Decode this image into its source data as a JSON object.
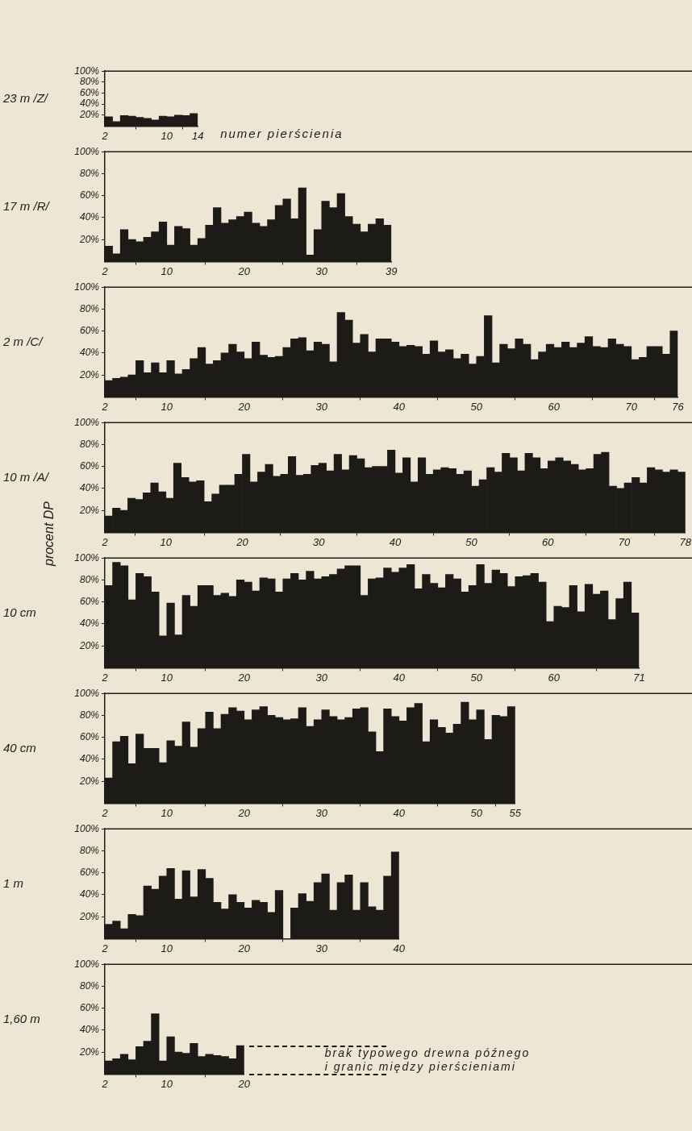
{
  "chart_data": [
    {
      "type": "histogram",
      "title": "23 m /Z/",
      "xlabel": "numer pierścienia",
      "color": "#1d1b18",
      "bins": [
        2,
        3,
        4,
        5,
        6,
        7,
        8,
        9,
        10,
        11,
        12,
        13,
        14
      ],
      "values": [
        17,
        8,
        19,
        18,
        16,
        14,
        11,
        18,
        17,
        20,
        19,
        23
      ],
      "xlim": [
        2,
        14
      ],
      "xticks": [
        2,
        10,
        14
      ],
      "ylim": [
        0,
        100
      ],
      "yticks": [
        {
          "value": 20,
          "label": "20%"
        },
        {
          "value": 40,
          "label": "40%"
        },
        {
          "value": 60,
          "label": "60%"
        },
        {
          "value": 80,
          "label": "80%"
        },
        {
          "value": 100,
          "label": "100%"
        }
      ]
    },
    {
      "type": "histogram",
      "title": "17 m /R/",
      "color": "#1d1b18",
      "bins": [
        2,
        3,
        4,
        5,
        6,
        7,
        8,
        9,
        10,
        11,
        12,
        13,
        14,
        15,
        16,
        17,
        18,
        19,
        20,
        21,
        22,
        23,
        24,
        25,
        26,
        27,
        28,
        29,
        30,
        31,
        32,
        33,
        34,
        35,
        36,
        37,
        38,
        39
      ],
      "values": [
        14,
        7,
        29,
        20,
        18,
        22,
        27,
        36,
        15,
        32,
        30,
        15,
        21,
        33,
        49,
        35,
        38,
        41,
        45,
        35,
        32,
        38,
        51,
        57,
        39,
        67,
        6,
        29,
        55,
        49,
        62,
        41,
        34,
        27,
        34,
        39,
        33
      ],
      "xlim": [
        2,
        39
      ],
      "xticks": [
        2,
        10,
        20,
        30,
        39
      ],
      "ylim": [
        0,
        100
      ],
      "yticks": [
        {
          "value": 20,
          "label": "20%"
        },
        {
          "value": 40,
          "label": "40%"
        },
        {
          "value": 60,
          "label": "60%"
        },
        {
          "value": 80,
          "label": "80%"
        },
        {
          "value": 100,
          "label": "100%"
        }
      ]
    },
    {
      "type": "histogram",
      "title": "2 m /C/",
      "color": "#1d1b18",
      "bins": [
        2,
        3,
        4,
        5,
        6,
        7,
        8,
        9,
        10,
        11,
        12,
        13,
        14,
        15,
        16,
        17,
        18,
        19,
        20,
        21,
        22,
        23,
        24,
        25,
        26,
        27,
        28,
        29,
        30,
        31,
        32,
        33,
        34,
        35,
        36,
        37,
        38,
        39,
        40,
        41,
        42,
        43,
        44,
        45,
        46,
        47,
        48,
        49,
        50,
        51,
        52,
        53,
        54,
        55,
        56,
        57,
        58,
        59,
        60,
        61,
        62,
        63,
        64,
        65,
        66,
        67,
        68,
        69,
        70,
        71,
        72,
        73,
        74,
        75,
        76
      ],
      "values": [
        15,
        17,
        18,
        20,
        33,
        22,
        31,
        22,
        33,
        21,
        25,
        35,
        45,
        30,
        33,
        40,
        48,
        41,
        35,
        50,
        38,
        36,
        37,
        45,
        53,
        54,
        42,
        50,
        48,
        32,
        77,
        70,
        49,
        57,
        41,
        53,
        53,
        50,
        46,
        47,
        46,
        39,
        51,
        41,
        43,
        35,
        39,
        30,
        37,
        74,
        31,
        48,
        44,
        53,
        48,
        34,
        41,
        48,
        45,
        50,
        45,
        49,
        55,
        46,
        45,
        53,
        48,
        46,
        34,
        36,
        46,
        46,
        39,
        60
      ],
      "xlim": [
        2,
        76
      ],
      "xticks": [
        2,
        10,
        20,
        30,
        40,
        50,
        60,
        70,
        76
      ],
      "ylim": [
        0,
        100
      ],
      "yticks": [
        {
          "value": 20,
          "label": "20%"
        },
        {
          "value": 40,
          "label": "40%"
        },
        {
          "value": 60,
          "label": "60%"
        },
        {
          "value": 80,
          "label": "80%"
        },
        {
          "value": 100,
          "label": "100%"
        }
      ]
    },
    {
      "type": "histogram",
      "title": "10 m /A/",
      "ylabel": "procent DP",
      "color": "#1d1b18",
      "bins": [
        2,
        3,
        4,
        5,
        6,
        7,
        8,
        9,
        10,
        11,
        12,
        13,
        14,
        15,
        16,
        17,
        18,
        19,
        20,
        21,
        22,
        23,
        24,
        25,
        26,
        27,
        28,
        29,
        30,
        31,
        32,
        33,
        34,
        35,
        36,
        37,
        38,
        39,
        40,
        41,
        42,
        43,
        44,
        45,
        46,
        47,
        48,
        49,
        50,
        51,
        52,
        53,
        54,
        55,
        56,
        57,
        58,
        59,
        60,
        61,
        62,
        63,
        64,
        65,
        66,
        67,
        68,
        69,
        70,
        71,
        72,
        73,
        74,
        75,
        76,
        77,
        78
      ],
      "values": [
        15,
        22,
        20,
        31,
        30,
        36,
        45,
        37,
        31,
        63,
        50,
        46,
        47,
        28,
        35,
        43,
        43,
        53,
        71,
        46,
        55,
        62,
        51,
        53,
        69,
        52,
        53,
        61,
        63,
        56,
        71,
        57,
        70,
        67,
        59,
        60,
        60,
        75,
        54,
        68,
        46,
        68,
        53,
        57,
        59,
        58,
        53,
        56,
        42,
        48,
        59,
        55,
        72,
        68,
        56,
        72,
        68,
        58,
        65,
        68,
        65,
        62,
        57,
        58,
        71,
        73,
        42,
        40,
        45,
        50,
        45,
        59,
        57,
        55,
        57,
        55
      ],
      "xlim": [
        2,
        78
      ],
      "xticks": [
        2,
        10,
        20,
        30,
        40,
        50,
        60,
        70,
        78
      ],
      "ylim": [
        0,
        100
      ],
      "yticks": [
        {
          "value": 20,
          "label": "20%"
        },
        {
          "value": 40,
          "label": "40%"
        },
        {
          "value": 60,
          "label": "60%"
        },
        {
          "value": 80,
          "label": "80%"
        },
        {
          "value": 100,
          "label": "100%"
        }
      ]
    },
    {
      "type": "histogram",
      "title": "10 cm",
      "color": "#1d1b18",
      "bins": [
        2,
        3,
        4,
        5,
        6,
        7,
        8,
        9,
        10,
        11,
        12,
        13,
        14,
        15,
        16,
        17,
        18,
        19,
        20,
        21,
        22,
        23,
        24,
        25,
        26,
        27,
        28,
        29,
        30,
        31,
        32,
        33,
        34,
        35,
        36,
        37,
        38,
        39,
        40,
        41,
        42,
        43,
        44,
        45,
        46,
        47,
        48,
        49,
        50,
        51,
        52,
        53,
        54,
        55,
        56,
        57,
        58,
        59,
        60,
        61,
        62,
        63,
        64,
        65,
        66,
        67,
        68,
        69,
        70,
        71
      ],
      "values": [
        75,
        96,
        93,
        62,
        86,
        83,
        69,
        29,
        59,
        30,
        66,
        56,
        75,
        75,
        66,
        68,
        65,
        80,
        78,
        70,
        82,
        81,
        69,
        81,
        86,
        80,
        88,
        81,
        83,
        85,
        90,
        93,
        93,
        66,
        81,
        82,
        91,
        87,
        91,
        94,
        72,
        85,
        77,
        73,
        85,
        81,
        69,
        75,
        94,
        77,
        89,
        86,
        74,
        83,
        84,
        86,
        78,
        42,
        56,
        55,
        75,
        51,
        76,
        67,
        70,
        44,
        63,
        78,
        50
      ],
      "xlim": [
        2,
        71
      ],
      "xticks": [
        2,
        10,
        20,
        30,
        40,
        50,
        60,
        71
      ],
      "ylim": [
        0,
        100
      ],
      "yticks": [
        {
          "value": 20,
          "label": "20%"
        },
        {
          "value": 40,
          "label": "40%"
        },
        {
          "value": 60,
          "label": "60%"
        },
        {
          "value": 80,
          "label": "80%"
        },
        {
          "value": 100,
          "label": "100%"
        }
      ]
    },
    {
      "type": "histogram",
      "title": "40 cm",
      "color": "#1d1b18",
      "bins": [
        2,
        3,
        4,
        5,
        6,
        7,
        8,
        9,
        10,
        11,
        12,
        13,
        14,
        15,
        16,
        17,
        18,
        19,
        20,
        21,
        22,
        23,
        24,
        25,
        26,
        27,
        28,
        29,
        30,
        31,
        32,
        33,
        34,
        35,
        36,
        37,
        38,
        39,
        40,
        41,
        42,
        43,
        44,
        45,
        46,
        47,
        48,
        49,
        50,
        51,
        52,
        53,
        54,
        55
      ],
      "values": [
        23,
        56,
        61,
        36,
        63,
        50,
        50,
        37,
        57,
        52,
        74,
        51,
        68,
        83,
        68,
        81,
        87,
        84,
        76,
        85,
        88,
        80,
        78,
        76,
        77,
        87,
        70,
        76,
        85,
        79,
        76,
        78,
        86,
        87,
        65,
        47,
        86,
        79,
        75,
        87,
        91,
        56,
        76,
        69,
        64,
        72,
        92,
        76,
        85,
        58,
        80,
        79,
        88
      ],
      "xlim": [
        2,
        55
      ],
      "xticks": [
        2,
        10,
        20,
        30,
        40,
        50,
        55
      ],
      "ylim": [
        0,
        100
      ],
      "yticks": [
        {
          "value": 20,
          "label": "20%"
        },
        {
          "value": 40,
          "label": "40%"
        },
        {
          "value": 60,
          "label": "60%"
        },
        {
          "value": 80,
          "label": "80%"
        },
        {
          "value": 100,
          "label": "100%"
        }
      ]
    },
    {
      "type": "histogram",
      "title": "1 m",
      "color": "#1d1b18",
      "bins": [
        2,
        3,
        4,
        5,
        6,
        7,
        8,
        9,
        10,
        11,
        12,
        13,
        14,
        15,
        16,
        17,
        18,
        19,
        20,
        21,
        22,
        23,
        24,
        25,
        26,
        27,
        28,
        29,
        30,
        31,
        32,
        33,
        34,
        35,
        36,
        37,
        38,
        39,
        40
      ],
      "values": [
        13,
        16,
        9,
        22,
        21,
        48,
        45,
        57,
        64,
        36,
        62,
        38,
        63,
        55,
        33,
        27,
        40,
        33,
        28,
        35,
        33,
        24,
        44,
        0,
        28,
        41,
        34,
        51,
        59,
        26,
        51,
        58,
        26,
        51,
        29,
        26,
        57,
        79
      ],
      "xlim": [
        2,
        40
      ],
      "xticks": [
        2,
        10,
        20,
        30,
        40
      ],
      "ylim": [
        0,
        100
      ],
      "yticks": [
        {
          "value": 20,
          "label": "20%"
        },
        {
          "value": 40,
          "label": "40%"
        },
        {
          "value": 60,
          "label": "60%"
        },
        {
          "value": 80,
          "label": "80%"
        },
        {
          "value": 100,
          "label": "100%"
        }
      ]
    },
    {
      "type": "histogram",
      "title": "1,60 m",
      "color": "#1d1b18",
      "bins": [
        2,
        3,
        4,
        5,
        6,
        7,
        8,
        9,
        10,
        11,
        12,
        13,
        14,
        15,
        16,
        17,
        18,
        19,
        20
      ],
      "values": [
        12,
        14,
        18,
        13,
        25,
        30,
        55,
        12,
        34,
        20,
        19,
        28,
        16,
        18,
        17,
        16,
        14,
        26
      ],
      "xlim": [
        2,
        20
      ],
      "xticks": [
        2,
        10,
        20
      ],
      "ylim": [
        0,
        100
      ],
      "yticks": [
        {
          "value": 20,
          "label": "20%"
        },
        {
          "value": 40,
          "label": "40%"
        },
        {
          "value": 60,
          "label": "60%"
        },
        {
          "value": 80,
          "label": "80%"
        },
        {
          "value": 100,
          "label": "100%"
        }
      ],
      "annotations": [
        "brak typowego drewna późnego",
        "i granic między pierścieniami"
      ]
    }
  ]
}
